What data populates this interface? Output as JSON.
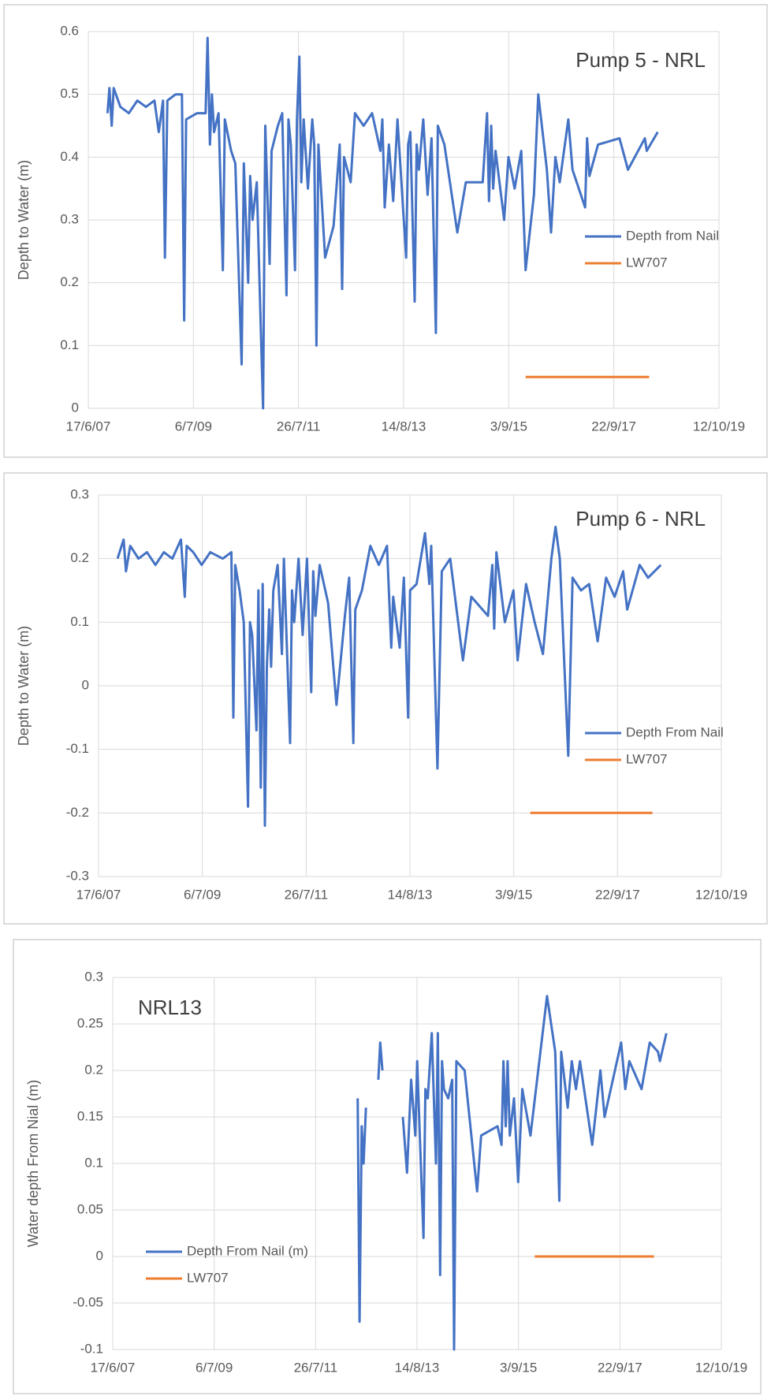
{
  "chart_data": [
    {
      "type": "line",
      "title": "Pump 5 - NRL",
      "y_label": "Depth to Water (m)",
      "xlim": [
        "17/6/07",
        "12/10/19"
      ],
      "xticks": [
        "17/6/07",
        "6/7/09",
        "26/7/11",
        "14/8/13",
        "3/9/15",
        "22/9/17",
        "12/10/19"
      ],
      "ylim": [
        0,
        0.6
      ],
      "yticks": [
        0,
        0.1,
        0.2,
        0.3,
        0.4,
        0.5,
        0.6
      ],
      "grid": true,
      "legend": "right",
      "series": [
        {
          "name": "Depth from Nail",
          "color": "#4472c4",
          "x": [
            "1/11/07",
            "15/11/07",
            "1/12/07",
            "15/12/07",
            "1/2/08",
            "1/4/08",
            "1/6/08",
            "1/8/08",
            "1/10/08",
            "1/11/08",
            "1/12/08",
            "15/12/08",
            "1/1/09",
            "1/3/09",
            "15/4/09",
            "1/5/09",
            "15/5/09",
            "1/8/09",
            "1/10/09",
            "15/10/09",
            "1/11/09",
            "15/11/09",
            "1/12/09",
            "1/1/10",
            "1/2/10",
            "15/2/10",
            "1/4/10",
            "1/5/10",
            "15/6/10",
            "1/7/10",
            "1/8/10",
            "15/8/10",
            "1/9/10",
            "1/10/10",
            "1/11/10",
            "15/11/10",
            "1/12/10",
            "1/1/11",
            "15/1/11",
            "1/3/11",
            "1/4/11",
            "1/5/11",
            "15/5/11",
            "1/6/11",
            "1/7/11",
            "15/7/11",
            "1/8/11",
            "15/8/11",
            "1/9/11",
            "1/10/11",
            "1/11/11",
            "15/11/11",
            "1/12/11",
            "15/12/11",
            "1/2/12",
            "1/4/12",
            "15/5/12",
            "1/6/12",
            "15/6/12",
            "1/8/12",
            "1/9/12",
            "1/11/12",
            "1/1/13",
            "1/3/13",
            "15/3/13",
            "1/4/13",
            "1/5/13",
            "1/6/13",
            "1/7/13",
            "1/9/13",
            "15/9/13",
            "1/10/13",
            "1/11/13",
            "15/11/13",
            "1/12/13",
            "1/1/14",
            "1/2/14",
            "1/3/14",
            "1/4/14",
            "15/4/14",
            "1/6/14",
            "1/9/14",
            "1/11/14",
            "1/3/15",
            "1/4/15",
            "15/4/15",
            "1/5/15",
            "15/5/15",
            "1/6/15",
            "1/8/15",
            "1/9/15",
            "15/10/15",
            "1/12/15",
            "1/1/16",
            "1/3/16",
            "1/4/16",
            "1/6/16",
            "1/7/16",
            "1/8/16",
            "1/9/16",
            "1/11/16",
            "1/12/16",
            "1/3/17",
            "15/3/17",
            "1/4/17",
            "1/6/17",
            "1/11/17",
            "1/1/18",
            "1/5/18",
            "15/5/18",
            "1/8/18"
          ],
          "values": [
            0.47,
            0.51,
            0.45,
            0.51,
            0.48,
            0.47,
            0.49,
            0.48,
            0.49,
            0.44,
            0.49,
            0.24,
            0.49,
            0.5,
            0.5,
            0.14,
            0.46,
            0.47,
            0.47,
            0.59,
            0.42,
            0.5,
            0.44,
            0.47,
            0.22,
            0.46,
            0.41,
            0.39,
            0.07,
            0.39,
            0.2,
            0.37,
            0.3,
            0.36,
            0.11,
            0,
            0.45,
            0.23,
            0.41,
            0.45,
            0.47,
            0.18,
            0.46,
            0.42,
            0.22,
            0.46,
            0.56,
            0.36,
            0.46,
            0.35,
            0.46,
            0.42,
            0.1,
            0.42,
            0.24,
            0.29,
            0.42,
            0.19,
            0.4,
            0.36,
            0.47,
            0.45,
            0.47,
            0.41,
            0.46,
            0.32,
            0.42,
            0.33,
            0.46,
            0.24,
            0.42,
            0.44,
            0.17,
            0.42,
            0.38,
            0.46,
            0.34,
            0.43,
            0.12,
            0.45,
            0.42,
            0.28,
            0.36,
            0.36,
            0.47,
            0.33,
            0.45,
            0.35,
            0.41,
            0.3,
            0.4,
            0.35,
            0.41,
            0.22,
            0.34,
            0.5,
            0.38,
            0.28,
            0.4,
            0.36,
            0.46,
            0.38,
            0.32,
            0.43,
            0.37,
            0.42,
            0.43,
            0.38,
            0.43,
            0.41,
            0.44
          ]
        },
        {
          "name": "LW707",
          "color": "#ed7d31",
          "x": [
            "1/1/16",
            "1/6/18"
          ],
          "values": [
            0.05,
            0.05
          ]
        }
      ]
    },
    {
      "type": "line",
      "title": "Pump 6 - NRL",
      "y_label": "Depth to Water (m)",
      "xlim": [
        "17/6/07",
        "12/10/19"
      ],
      "xticks": [
        "17/6/07",
        "6/7/09",
        "26/7/11",
        "14/8/13",
        "3/9/15",
        "22/9/17",
        "12/10/19"
      ],
      "ylim": [
        -0.3,
        0.3
      ],
      "yticks": [
        -0.3,
        -0.2,
        -0.1,
        0,
        0.1,
        0.2,
        0.3
      ],
      "grid": true,
      "legend": "right",
      "series": [
        {
          "name": "Depth From Nail",
          "color": "#4472c4",
          "x": [
            "1/11/07",
            "15/12/07",
            "1/1/08",
            "1/2/08",
            "1/4/08",
            "1/6/08",
            "1/8/08",
            "1/10/08",
            "1/12/08",
            "1/2/09",
            "1/3/09",
            "15/3/09",
            "1/5/09",
            "1/7/09",
            "1/9/09",
            "1/12/09",
            "1/2/10",
            "15/2/10",
            "1/3/10",
            "1/4/10",
            "1/5/10",
            "1/6/10",
            "15/6/10",
            "1/7/10",
            "1/8/10",
            "15/8/10",
            "1/9/10",
            "15/9/10",
            "1/10/10",
            "15/10/10",
            "1/11/10",
            "15/11/10",
            "1/12/10",
            "1/1/11",
            "1/2/11",
            "15/2/11",
            "1/4/11",
            "15/4/11",
            "1/5/11",
            "1/6/11",
            "1/7/11",
            "1/8/11",
            "1/9/11",
            "15/9/11",
            "1/10/11",
            "1/11/11",
            "1/1/12",
            "1/3/12",
            "1/5/12",
            "1/6/12",
            "1/7/12",
            "15/7/12",
            "1/9/12",
            "1/11/12",
            "1/1/13",
            "1/3/13",
            "1/4/13",
            "15/4/13",
            "1/6/13",
            "1/7/13",
            "1/8/13",
            "15/8/13",
            "1/10/13",
            "1/12/13",
            "1/1/14",
            "15/1/14",
            "1/3/14",
            "1/4/14",
            "1/6/14",
            "1/9/14",
            "1/11/14",
            "1/3/15",
            "1/4/15",
            "15/4/15",
            "1/5/15",
            "1/7/15",
            "1/9/15",
            "1/10/15",
            "1/12/15",
            "1/2/16",
            "1/4/16",
            "1/6/16",
            "1/7/16",
            "1/8/16",
            "1/10/16",
            "1/11/16",
            "1/1/17",
            "1/3/17",
            "1/5/17",
            "1/7/17",
            "1/9/17",
            "1/11/17",
            "1/12/17",
            "1/3/18",
            "1/5/18",
            "1/8/18"
          ],
          "values": [
            0.2,
            0.23,
            0.18,
            0.22,
            0.2,
            0.21,
            0.19,
            0.21,
            0.2,
            0.23,
            0.14,
            0.22,
            0.21,
            0.19,
            0.21,
            0.2,
            0.21,
            -0.05,
            0.19,
            0.15,
            0.1,
            -0.19,
            0.1,
            0.08,
            -0.07,
            0.15,
            -0.16,
            0.16,
            -0.22,
            0.03,
            0.12,
            0.03,
            0.15,
            0.19,
            0.05,
            0.2,
            -0.09,
            0.15,
            0.1,
            0.2,
            0.08,
            0.2,
            -0.01,
            0.18,
            0.11,
            0.19,
            0.13,
            -0.03,
            0.11,
            0.17,
            -0.09,
            0.12,
            0.15,
            0.22,
            0.19,
            0.22,
            0.06,
            0.14,
            0.06,
            0.17,
            -0.05,
            0.15,
            0.16,
            0.24,
            0.16,
            0.22,
            -0.13,
            0.18,
            0.2,
            0.04,
            0.14,
            0.11,
            0.19,
            0.09,
            0.21,
            0.1,
            0.15,
            0.04,
            0.16,
            0.1,
            0.05,
            0.2,
            0.25,
            0.2,
            -0.11,
            0.17,
            0.15,
            0.16,
            0.07,
            0.17,
            0.14,
            0.18,
            0.12,
            0.19,
            0.17,
            0.19
          ]
        },
        {
          "name": "LW707",
          "color": "#ed7d31",
          "x": [
            "1/1/16",
            "1/6/18"
          ],
          "values": [
            -0.2,
            -0.2
          ]
        }
      ]
    },
    {
      "type": "line",
      "title": "NRL13",
      "y_label": "Water depth From Nial (m)",
      "xlim": [
        "17/6/07",
        "12/10/19"
      ],
      "xticks": [
        "17/6/07",
        "6/7/09",
        "26/7/11",
        "14/8/13",
        "3/9/15",
        "22/9/17",
        "12/10/19"
      ],
      "ylim": [
        -0.1,
        0.3
      ],
      "yticks": [
        -0.1,
        -0.05,
        0,
        0.05,
        0.1,
        0.15,
        0.2,
        0.25,
        0.3
      ],
      "grid": true,
      "legend": "left",
      "series": [
        {
          "name": "Depth From Nail (m)",
          "color": "#4472c4",
          "x": [
            "1/6/12",
            "15/6/12",
            "1/7/12",
            "15/7/12",
            "1/8/12",
            null,
            "1/11/12",
            "15/11/12",
            "1/12/12",
            null,
            "1/5/13",
            "1/6/13",
            "1/7/13",
            "1/8/13",
            "15/8/13",
            "1/9/13",
            "1/10/13",
            "15/10/13",
            "1/11/13",
            "1/12/13",
            "1/1/14",
            "15/1/14",
            "1/2/14",
            "15/2/14",
            "1/3/14",
            "1/4/14",
            "1/5/14",
            "15/5/14",
            "1/6/14",
            "1/8/14",
            "1/11/14",
            "1/12/14",
            "1/4/15",
            "1/5/15",
            "15/5/15",
            "1/6/15",
            "15/6/15",
            "1/7/15",
            "1/8/15",
            "1/9/15",
            "1/10/15",
            "1/12/15",
            "1/4/16",
            "1/6/16",
            "1/7/16",
            "15/7/16",
            "1/9/16",
            "1/10/16",
            "1/11/16",
            "1/12/16",
            "1/3/17",
            "1/5/17",
            "1/6/17",
            "1/8/17",
            "1/10/17",
            "1/11/17",
            "1/12/17",
            "1/3/18",
            "1/5/18",
            "1/7/18",
            "15/7/18",
            "1/9/18"
          ],
          "values": [
            0.17,
            -0.07,
            0.14,
            0.1,
            0.16,
            null,
            0.19,
            0.23,
            0.2,
            null,
            0.15,
            0.09,
            0.19,
            0.13,
            0.21,
            0.14,
            0.02,
            0.18,
            0.17,
            0.24,
            0.1,
            0.24,
            -0.02,
            0.21,
            0.18,
            0.17,
            0.19,
            -0.1,
            0.21,
            0.2,
            0.07,
            0.13,
            0.14,
            0.12,
            0.21,
            0.14,
            0.21,
            0.13,
            0.17,
            0.08,
            0.18,
            0.13,
            0.28,
            0.22,
            0.06,
            0.22,
            0.16,
            0.21,
            0.18,
            0.21,
            0.12,
            0.2,
            0.15,
            0.19,
            0.23,
            0.18,
            0.21,
            0.18,
            0.23,
            0.22,
            0.21,
            0.24
          ]
        },
        {
          "name": "LW707",
          "color": "#ed7d31",
          "x": [
            "1/1/16",
            "1/6/18"
          ],
          "values": [
            0,
            0
          ]
        }
      ]
    }
  ]
}
